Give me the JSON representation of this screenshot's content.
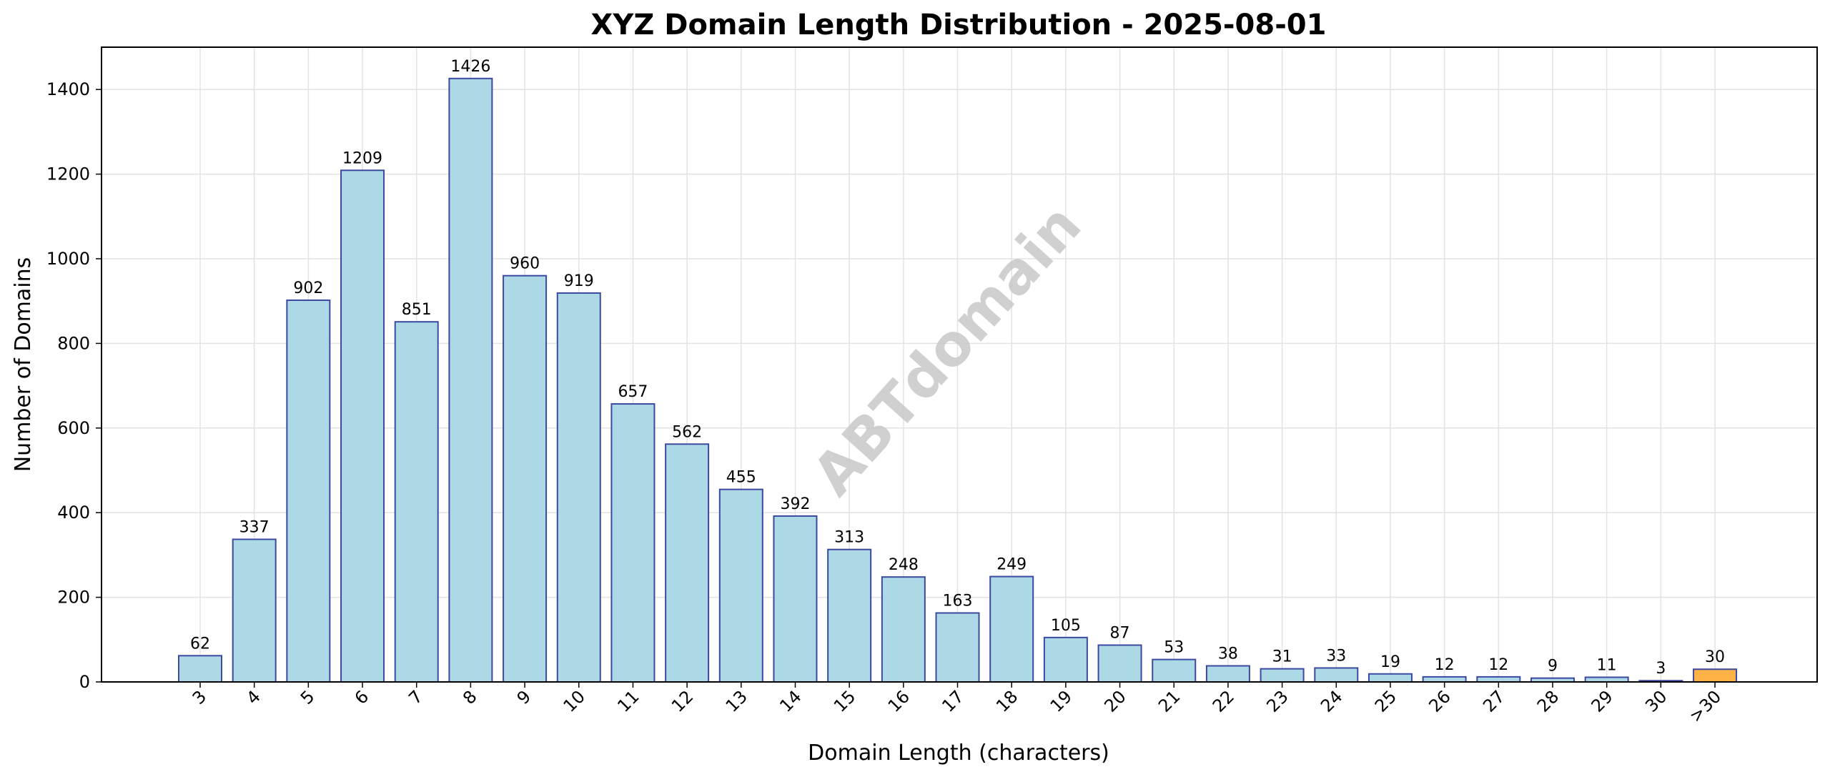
{
  "chart_data": {
    "type": "bar",
    "title": "XYZ Domain Length Distribution - 2025-08-01",
    "xlabel": "Domain Length (characters)",
    "ylabel": "Number of Domains",
    "categories": [
      "3",
      "4",
      "5",
      "6",
      "7",
      "8",
      "9",
      "10",
      "11",
      "12",
      "13",
      "14",
      "15",
      "16",
      "17",
      "18",
      "19",
      "20",
      "21",
      "22",
      "23",
      "24",
      "25",
      "26",
      "27",
      "28",
      "29",
      "30",
      ">30"
    ],
    "values": [
      62,
      337,
      902,
      1209,
      851,
      1426,
      960,
      919,
      657,
      562,
      455,
      392,
      313,
      248,
      163,
      249,
      105,
      87,
      53,
      38,
      31,
      33,
      19,
      12,
      12,
      9,
      11,
      3,
      30
    ],
    "ylim": [
      0,
      1500
    ],
    "yticks": [
      0,
      200,
      400,
      600,
      800,
      1000,
      1200,
      1400
    ],
    "grid": true,
    "colors": {
      "bar_fill": "#add8e6",
      "bar_edge": "#3b4aa0",
      "highlight_fill": "#ffb347",
      "grid": "#e3e3e3"
    },
    "highlight_category": ">30",
    "watermark": "ABTdomain"
  }
}
